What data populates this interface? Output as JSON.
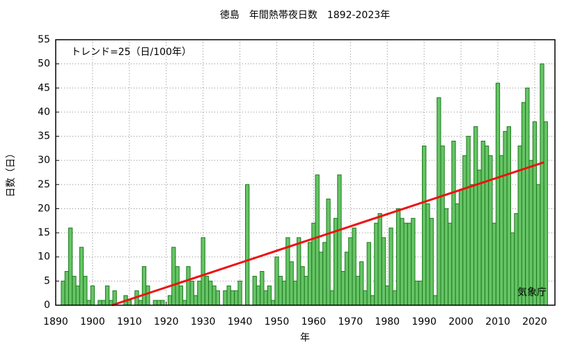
{
  "chart_data": {
    "type": "bar",
    "title": "徳島　年間熱帯夜日数　1892-2023年",
    "xlabel": "年",
    "ylabel": "日数（日）",
    "annotations": [
      "トレンド=25（日/100年）",
      "気象庁"
    ],
    "x": [
      1892,
      1893,
      1894,
      1895,
      1896,
      1897,
      1898,
      1899,
      1900,
      1901,
      1902,
      1903,
      1904,
      1905,
      1906,
      1907,
      1908,
      1909,
      1910,
      1911,
      1912,
      1913,
      1914,
      1915,
      1916,
      1917,
      1918,
      1919,
      1920,
      1921,
      1922,
      1923,
      1924,
      1925,
      1926,
      1927,
      1928,
      1929,
      1930,
      1931,
      1932,
      1933,
      1934,
      1935,
      1936,
      1937,
      1938,
      1939,
      1940,
      1941,
      1942,
      1943,
      1944,
      1945,
      1946,
      1947,
      1948,
      1949,
      1950,
      1951,
      1952,
      1953,
      1954,
      1955,
      1956,
      1957,
      1958,
      1959,
      1960,
      1961,
      1962,
      1963,
      1964,
      1965,
      1966,
      1967,
      1968,
      1969,
      1970,
      1971,
      1972,
      1973,
      1974,
      1975,
      1976,
      1977,
      1978,
      1979,
      1980,
      1981,
      1982,
      1983,
      1984,
      1985,
      1986,
      1987,
      1988,
      1989,
      1990,
      1991,
      1992,
      1993,
      1994,
      1995,
      1996,
      1997,
      1998,
      1999,
      2000,
      2001,
      2002,
      2003,
      2004,
      2005,
      2006,
      2007,
      2008,
      2009,
      2010,
      2011,
      2012,
      2013,
      2014,
      2015,
      2016,
      2017,
      2018,
      2019,
      2020,
      2021,
      2022,
      2023
    ],
    "values": [
      5,
      7,
      16,
      6,
      4,
      12,
      6,
      1,
      4,
      0,
      1,
      1,
      4,
      1,
      3,
      0,
      0,
      2,
      1,
      0,
      3,
      1,
      8,
      4,
      0,
      1,
      1,
      1,
      0,
      2,
      12,
      8,
      4,
      1,
      8,
      5,
      2,
      5,
      14,
      6,
      5,
      4,
      3,
      0,
      3,
      4,
      3,
      3,
      5,
      0,
      25,
      0,
      6,
      4,
      7,
      3,
      4,
      1,
      10,
      6,
      5,
      14,
      9,
      5,
      14,
      8,
      6,
      13,
      17,
      27,
      11,
      13,
      22,
      3,
      18,
      27,
      7,
      11,
      14,
      16,
      6,
      9,
      3,
      13,
      2,
      17,
      19,
      14,
      4,
      16,
      3,
      20,
      18,
      17,
      17,
      18,
      5,
      5,
      33,
      21,
      18,
      2,
      43,
      33,
      20,
      17,
      34,
      21,
      24,
      31,
      35,
      25,
      37,
      28,
      34,
      33,
      31,
      17,
      46,
      31,
      36,
      37,
      15,
      19,
      33,
      42,
      45,
      30,
      38,
      25,
      50,
      38
    ],
    "color": "#66c466",
    "edge_color": "#1c7a1c",
    "trend": {
      "x": [
        1905.3,
        2022.5
      ],
      "values": [
        0,
        29.6
      ],
      "color": "#ee1111"
    },
    "xlim": [
      1890,
      2025.5
    ],
    "ylim": [
      0,
      55
    ],
    "xticks": [
      1890,
      1900,
      1910,
      1920,
      1930,
      1940,
      1950,
      1960,
      1970,
      1980,
      1990,
      2000,
      2010,
      2020
    ],
    "yticks": [
      0,
      5,
      10,
      15,
      20,
      25,
      30,
      35,
      40,
      45,
      50,
      55
    ],
    "grid": true
  }
}
